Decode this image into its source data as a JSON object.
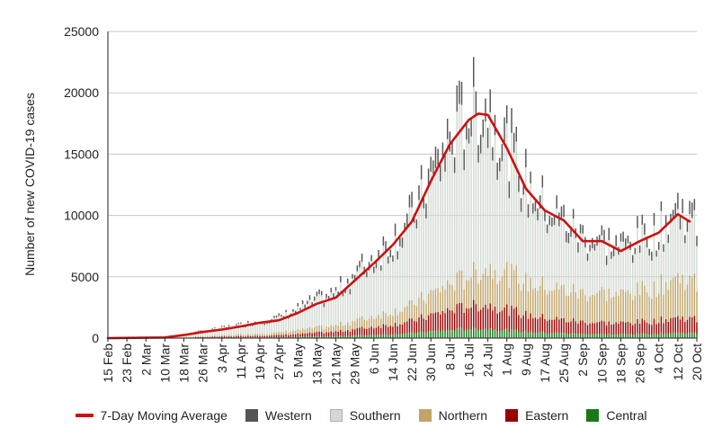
{
  "chart_data": {
    "type": "bar",
    "stacked": true,
    "title": "",
    "xlabel": "",
    "ylabel": "Number of new COVID-19 cases",
    "ylim": [
      0,
      25000
    ],
    "yticks": [
      "0",
      "5000",
      "10000",
      "15000",
      "20000",
      "25000"
    ],
    "ytick_values": [
      0,
      5000,
      10000,
      15000,
      20000,
      25000
    ],
    "grid": "horizontal",
    "legend_position": "bottom",
    "x_start": "2020-02-15",
    "x_end": "2020-10-20",
    "x_tick_labels": [
      "15 Feb",
      "23 Feb",
      "2 Mar",
      "10 Mar",
      "18 Mar",
      "26 Mar",
      "3 Apr",
      "11 Apr",
      "19 Apr",
      "27 Apr",
      "5 May",
      "13 May",
      "21 May",
      "29 May",
      "6 Jun",
      "14 Jun",
      "22 Jun",
      "30 Jun",
      "8 Jul",
      "16 Jul",
      "24 Jul",
      "1 Aug",
      "9 Aug",
      "17 Aug",
      "25 Aug",
      "2 Sep",
      "10 Sep",
      "18 Sep",
      "26 Sep",
      "4 Oct",
      "12 Oct",
      "20 Oct"
    ],
    "series": [
      {
        "name": "Western",
        "color": "#555555"
      },
      {
        "name": "Southern",
        "color": "#d2d9d2"
      },
      {
        "name": "Northern",
        "color": "#bfa56a"
      },
      {
        "name": "Eastern",
        "color": "#990000"
      },
      {
        "name": "Central",
        "color": "#1a7a1a"
      }
    ],
    "line_series": {
      "name": "7-Day Moving Average",
      "color": "#cc1111"
    },
    "moving_average_points": [
      [
        "2020-02-15",
        0
      ],
      [
        "2020-03-10",
        50
      ],
      [
        "2020-03-18",
        250
      ],
      [
        "2020-03-26",
        500
      ],
      [
        "2020-04-03",
        700
      ],
      [
        "2020-04-11",
        950
      ],
      [
        "2020-04-19",
        1250
      ],
      [
        "2020-04-27",
        1450
      ],
      [
        "2020-05-05",
        2050
      ],
      [
        "2020-05-13",
        2800
      ],
      [
        "2020-05-21",
        3300
      ],
      [
        "2020-05-29",
        4700
      ],
      [
        "2020-06-06",
        6100
      ],
      [
        "2020-06-14",
        7600
      ],
      [
        "2020-06-22",
        9500
      ],
      [
        "2020-06-30",
        12800
      ],
      [
        "2020-07-08",
        15800
      ],
      [
        "2020-07-16",
        17800
      ],
      [
        "2020-07-20",
        18300
      ],
      [
        "2020-07-24",
        18200
      ],
      [
        "2020-08-01",
        15500
      ],
      [
        "2020-08-09",
        12200
      ],
      [
        "2020-08-17",
        10400
      ],
      [
        "2020-08-25",
        9600
      ],
      [
        "2020-09-02",
        7900
      ],
      [
        "2020-09-10",
        7900
      ],
      [
        "2020-09-18",
        7100
      ],
      [
        "2020-09-26",
        7900
      ],
      [
        "2020-10-04",
        8600
      ],
      [
        "2020-10-12",
        10100
      ],
      [
        "2020-10-17",
        9500
      ]
    ],
    "daily_bar_envelope": [
      [
        "2020-02-15",
        0
      ],
      [
        "2020-03-10",
        60
      ],
      [
        "2020-03-18",
        300
      ],
      [
        "2020-03-26",
        600
      ],
      [
        "2020-04-03",
        850
      ],
      [
        "2020-04-11",
        1150
      ],
      [
        "2020-04-19",
        1450
      ],
      [
        "2020-04-27",
        1750
      ],
      [
        "2020-05-05",
        2500
      ],
      [
        "2020-05-13",
        3300
      ],
      [
        "2020-05-21",
        3900
      ],
      [
        "2020-05-29",
        5500
      ],
      [
        "2020-06-06",
        6900
      ],
      [
        "2020-06-14",
        8500
      ],
      [
        "2020-06-22",
        10300
      ],
      [
        "2020-06-30",
        13900
      ],
      [
        "2020-07-08",
        17000
      ],
      [
        "2020-07-16",
        19500
      ],
      [
        "2020-07-24",
        19800
      ],
      [
        "2020-08-01",
        16800
      ],
      [
        "2020-08-09",
        13300
      ],
      [
        "2020-08-17",
        11200
      ],
      [
        "2020-08-25",
        10100
      ],
      [
        "2020-09-02",
        8600
      ],
      [
        "2020-09-10",
        8400
      ],
      [
        "2020-09-18",
        7800
      ],
      [
        "2020-09-26",
        8600
      ],
      [
        "2020-10-04",
        9200
      ],
      [
        "2020-10-12",
        11200
      ],
      [
        "2020-10-20",
        9800
      ]
    ],
    "legend": [
      "7-Day Moving Average",
      "Western",
      "Southern",
      "Northern",
      "Eastern",
      "Central"
    ]
  }
}
